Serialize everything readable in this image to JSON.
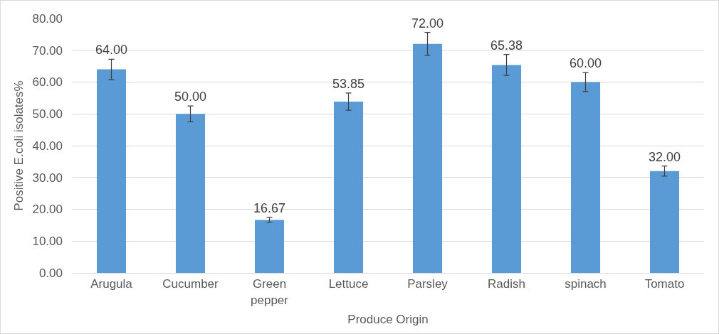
{
  "chart_data": {
    "type": "bar",
    "xlabel": "Produce Origin",
    "ylabel": "Positive E.coli isolates%",
    "categories": [
      "Arugula",
      "Cucumber",
      "Green pepper",
      "Lettuce",
      "Parsley",
      "Radish",
      "spinach",
      "Tomato"
    ],
    "values": [
      64.0,
      50.0,
      16.67,
      53.85,
      72.0,
      65.38,
      60.0,
      32.0
    ],
    "value_labels": [
      "64.00",
      "50.00",
      "16.67",
      "53.85",
      "72.00",
      "65.38",
      "60.00",
      "32.00"
    ],
    "errors": [
      3.2,
      2.5,
      0.8,
      2.7,
      3.6,
      3.3,
      3.0,
      1.6
    ],
    "color": "#5b9bd5",
    "ylim": [
      0,
      80
    ],
    "yticks": [
      {
        "value": 0,
        "label": "0.00"
      },
      {
        "value": 10,
        "label": "10.00"
      },
      {
        "value": 20,
        "label": "20.00"
      },
      {
        "value": 30,
        "label": "30.00"
      },
      {
        "value": 40,
        "label": "40.00"
      },
      {
        "value": 50,
        "label": "50.00"
      },
      {
        "value": 60,
        "label": "60.00"
      },
      {
        "value": 70,
        "label": "70.00"
      },
      {
        "value": 80,
        "label": "80.00"
      }
    ],
    "grid": "y"
  }
}
